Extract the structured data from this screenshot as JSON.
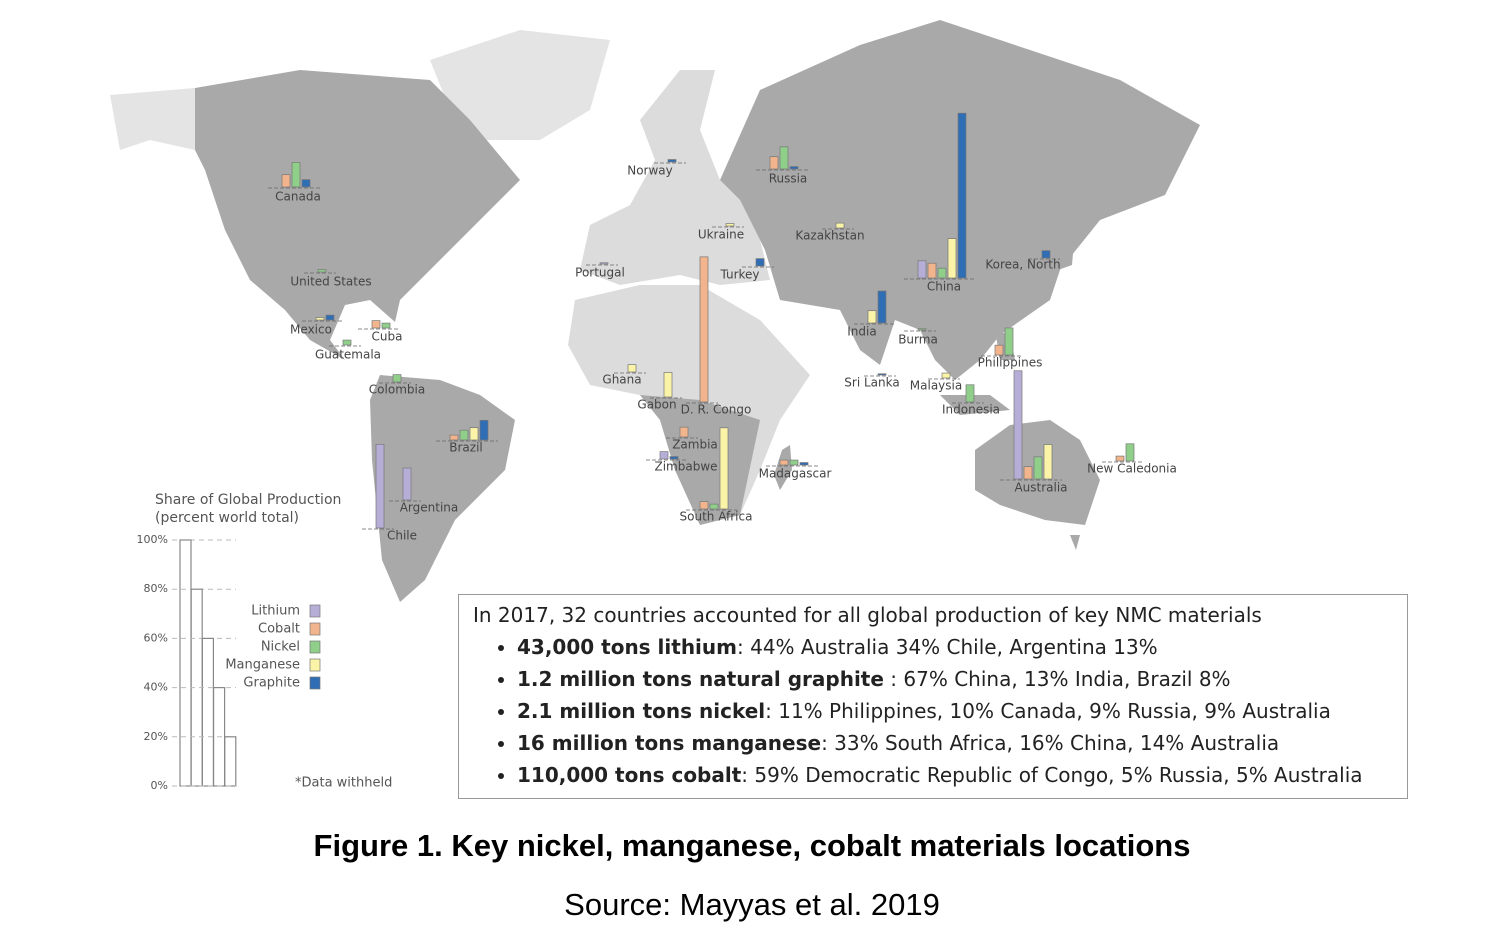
{
  "materials": [
    {
      "name": "Lithium",
      "color": "#b7aed8"
    },
    {
      "name": "Cobalt",
      "color": "#f2b48c"
    },
    {
      "name": "Nickel",
      "color": "#8fcf8a"
    },
    {
      "name": "Manganese",
      "color": "#fbf3a8"
    },
    {
      "name": "Graphite",
      "color": "#2f6db5"
    }
  ],
  "scale": {
    "title": "Share of Global Production",
    "subtitle": "(percent world total)",
    "note": "*Data withheld",
    "ticks": [
      {
        "value": 100,
        "label": "100%"
      },
      {
        "value": 80,
        "label": "80%"
      },
      {
        "value": 60,
        "label": "60%"
      },
      {
        "value": 40,
        "label": "40%"
      },
      {
        "value": 20,
        "label": "20%"
      },
      {
        "value": 0,
        "label": "0%"
      }
    ]
  },
  "countries": [
    {
      "label": "Canada",
      "values": [
        null,
        5,
        10,
        null,
        3
      ]
    },
    {
      "label": "Russia",
      "values": [
        null,
        5,
        9,
        null,
        1
      ]
    },
    {
      "label": "Norway",
      "values": [
        null,
        null,
        null,
        null,
        1
      ]
    },
    {
      "label": "United States",
      "values": [
        null,
        null,
        1,
        null,
        null
      ]
    },
    {
      "label": "Mexico",
      "values": [
        null,
        null,
        null,
        1,
        2
      ]
    },
    {
      "label": "Cuba",
      "values": [
        null,
        3,
        2,
        null,
        null
      ]
    },
    {
      "label": "Guatemala",
      "values": [
        null,
        null,
        2,
        null,
        null
      ]
    },
    {
      "label": "Colombia",
      "values": [
        null,
        null,
        3,
        null,
        null
      ]
    },
    {
      "label": "Brazil",
      "values": [
        null,
        2,
        4,
        5,
        8
      ]
    },
    {
      "label": "Chile",
      "values": [
        34,
        null,
        null,
        null,
        null
      ]
    },
    {
      "label": "Argentina",
      "values": [
        13,
        null,
        null,
        null,
        null
      ]
    },
    {
      "label": "Ukraine",
      "values": [
        null,
        null,
        null,
        1,
        null
      ]
    },
    {
      "label": "Kazakhstan",
      "values": [
        null,
        null,
        null,
        2,
        null
      ]
    },
    {
      "label": "Portugal",
      "values": [
        0.5,
        null,
        null,
        null,
        null
      ]
    },
    {
      "label": "Turkey",
      "values": [
        null,
        null,
        null,
        null,
        3
      ]
    },
    {
      "label": "China",
      "values": [
        7,
        6,
        4,
        16,
        67
      ]
    },
    {
      "label": "Korea, North",
      "values": [
        null,
        null,
        null,
        null,
        3
      ]
    },
    {
      "label": "India",
      "values": [
        null,
        null,
        null,
        5,
        13
      ]
    },
    {
      "label": "Burma",
      "values": [
        null,
        null,
        0.5,
        null,
        null
      ]
    },
    {
      "label": "Philippines",
      "values": [
        null,
        4,
        11,
        null,
        null
      ]
    },
    {
      "label": "Sri Lanka",
      "values": [
        null,
        null,
        null,
        null,
        0.5
      ]
    },
    {
      "label": "Malaysia",
      "values": [
        null,
        null,
        null,
        2,
        null
      ]
    },
    {
      "label": "Indonesia",
      "values": [
        null,
        null,
        7,
        null,
        null
      ]
    },
    {
      "label": "Ghana",
      "values": [
        null,
        null,
        null,
        3,
        null
      ]
    },
    {
      "label": "Gabon",
      "values": [
        null,
        null,
        null,
        10,
        null
      ]
    },
    {
      "label": "D. R. Congo",
      "values": [
        null,
        59,
        null,
        null,
        null
      ]
    },
    {
      "label": "Zambia",
      "values": [
        null,
        4,
        null,
        null,
        null
      ]
    },
    {
      "label": "Zimbabwe",
      "values": [
        3,
        null,
        null,
        null,
        1
      ]
    },
    {
      "label": "South Africa",
      "values": [
        null,
        3,
        2,
        33,
        null
      ]
    },
    {
      "label": "Madagascar",
      "values": [
        null,
        2,
        2,
        null,
        1
      ]
    },
    {
      "label": "Australia",
      "values": [
        44,
        5,
        9,
        14,
        null
      ]
    },
    {
      "label": "New Caledonia",
      "values": [
        null,
        2,
        7,
        null,
        null
      ]
    }
  ],
  "summary": {
    "intro": "In 2017, 32 countries accounted for all global production of key NMC materials",
    "bullets": [
      {
        "bold": "43,000 tons lithium",
        "text": ": 44% Australia 34% Chile, Argentina 13%"
      },
      {
        "bold": "1.2 million tons natural graphite",
        "text": " : 67% China, 13% India, Brazil 8%"
      },
      {
        "bold": "2.1 million tons nickel",
        "text": ": 11% Philippines, 10% Canada, 9% Russia, 9% Australia"
      },
      {
        "bold": "16 million tons manganese",
        "text": ": 33% South Africa, 16% China, 14% Australia"
      },
      {
        "bold": "110,000 tons cobalt",
        "text": ": 59% Democratic Republic of Congo, 5% Russia, 5% Australia"
      }
    ]
  },
  "caption": "Figure 1. Key nickel, manganese, cobalt materials locations",
  "source": "Source: Mayyas et al. 2019"
}
